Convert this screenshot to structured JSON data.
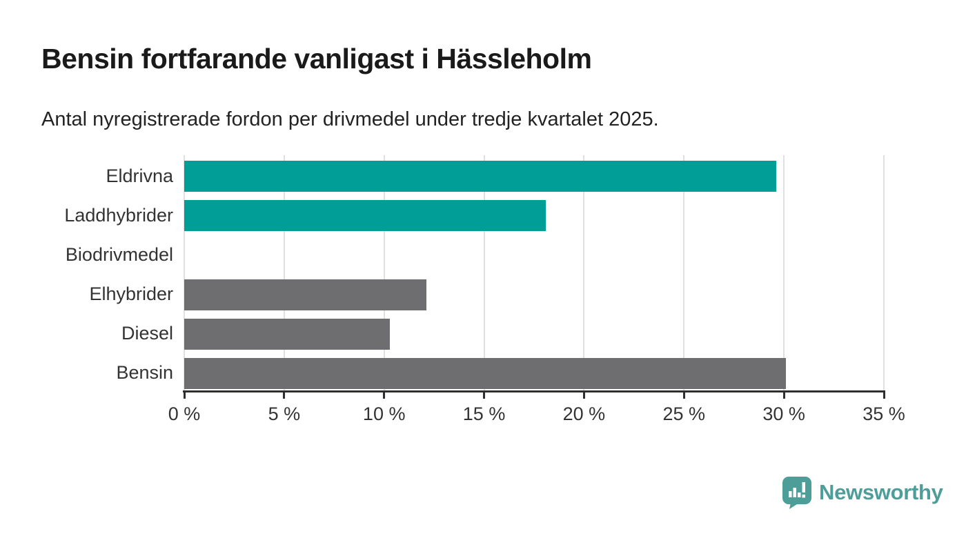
{
  "header": {
    "title": "Bensin fortfarande vanligast i Hässleholm",
    "subtitle": "Antal nyregistrerade fordon per drivmedel under tredje kvartalet 2025."
  },
  "chart_data": {
    "type": "bar",
    "orientation": "horizontal",
    "title": "Bensin fortfarande vanligast i Hässleholm",
    "subtitle": "Antal nyregistrerade fordon per drivmedel under tredje kvartalet 2025.",
    "categories": [
      "Eldrivna",
      "Laddhybrider",
      "Biodrivmedel",
      "Elhybrider",
      "Diesel",
      "Bensin"
    ],
    "values": [
      29.6,
      18.1,
      0,
      12.1,
      10.3,
      30.1
    ],
    "unit": "%",
    "bar_colors": [
      "#009e96",
      "#009e96",
      "#6e6e71",
      "#6e6e71",
      "#6e6e71",
      "#6e6e71"
    ],
    "xlim": [
      0,
      35
    ],
    "xticks": [
      0,
      5,
      10,
      15,
      20,
      25,
      30,
      35
    ],
    "xticklabels": [
      "0 %",
      "5 %",
      "10 %",
      "15 %",
      "20 %",
      "25 %",
      "30 %",
      "35 %"
    ],
    "grid": true,
    "legend": "none",
    "colors": {
      "accent_teal": "#009e96",
      "neutral_gray": "#6e6e71",
      "gridline": "#e0e0e0",
      "axis": "#2e2e2e",
      "text": "#333333"
    }
  },
  "branding": {
    "wordmark": "Newsworthy",
    "color": "#4d9d98",
    "icon": "newsworthy-pin-barchart-icon"
  }
}
